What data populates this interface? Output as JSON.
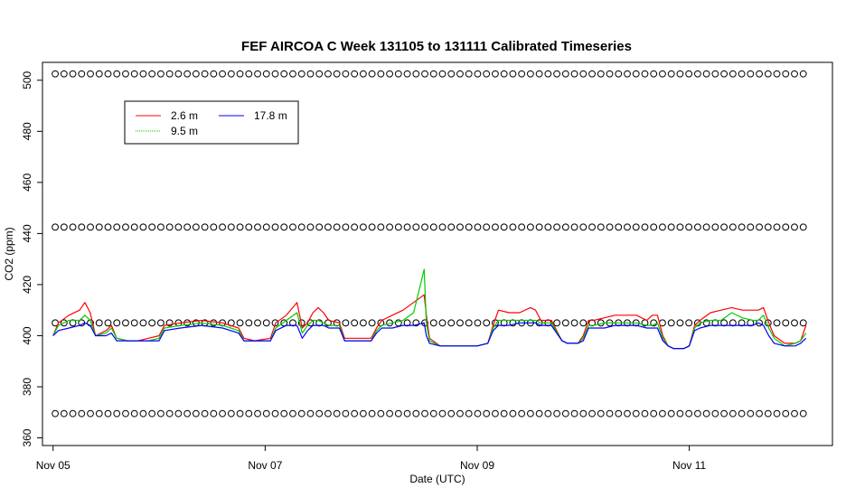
{
  "chart_data": {
    "type": "line",
    "title": "FEF AIRCOA C  Week 131105 to 131111  Calibrated Timeseries",
    "xlabel": "Date (UTC)",
    "ylabel": "CO2 (ppm)",
    "xlim": [
      -0.1,
      7.35
    ],
    "ylim": [
      357,
      507
    ],
    "x_units": "days since Nov 05 00:00 UTC",
    "x_ticks": [
      {
        "value": 0,
        "label": "Nov 05"
      },
      {
        "value": 2,
        "label": "Nov 07"
      },
      {
        "value": 4,
        "label": "Nov 09"
      },
      {
        "value": 6,
        "label": "Nov 11"
      }
    ],
    "y_ticks": [
      360,
      380,
      400,
      420,
      440,
      460,
      480,
      500
    ],
    "grid": false,
    "legend_placement": "top-left",
    "legend": [
      {
        "name": "2.6 m",
        "color": "#ff0000"
      },
      {
        "name": "9.5 m",
        "color": "#00cc00"
      },
      {
        "name": "17.8 m",
        "color": "#0000ff"
      }
    ],
    "series": [
      {
        "name": "2.6 m",
        "color": "#ff0000",
        "points": [
          [
            0,
            400
          ],
          [
            0.05,
            405
          ],
          [
            0.15,
            408
          ],
          [
            0.25,
            410
          ],
          [
            0.3,
            413
          ],
          [
            0.35,
            409
          ],
          [
            0.4,
            400
          ],
          [
            0.5,
            402
          ],
          [
            0.55,
            404
          ],
          [
            0.6,
            399
          ],
          [
            0.7,
            398
          ],
          [
            0.8,
            398
          ],
          [
            0.9,
            399
          ],
          [
            1.0,
            400
          ],
          [
            1.05,
            404
          ],
          [
            1.2,
            405
          ],
          [
            1.4,
            406
          ],
          [
            1.6,
            405
          ],
          [
            1.75,
            403
          ],
          [
            1.8,
            399
          ],
          [
            1.9,
            398
          ],
          [
            2.05,
            399
          ],
          [
            2.1,
            405
          ],
          [
            2.2,
            408
          ],
          [
            2.3,
            413
          ],
          [
            2.35,
            403
          ],
          [
            2.4,
            405
          ],
          [
            2.45,
            409
          ],
          [
            2.5,
            411
          ],
          [
            2.55,
            409
          ],
          [
            2.6,
            406
          ],
          [
            2.7,
            405
          ],
          [
            2.75,
            399
          ],
          [
            2.85,
            399
          ],
          [
            2.95,
            399
          ],
          [
            3.0,
            399
          ],
          [
            3.05,
            403
          ],
          [
            3.1,
            406
          ],
          [
            3.2,
            408
          ],
          [
            3.3,
            410
          ],
          [
            3.4,
            413
          ],
          [
            3.5,
            416
          ],
          [
            3.52,
            408
          ],
          [
            3.55,
            399
          ],
          [
            3.65,
            396
          ],
          [
            3.75,
            396
          ],
          [
            3.85,
            396
          ],
          [
            4.0,
            396
          ],
          [
            4.1,
            397
          ],
          [
            4.15,
            404
          ],
          [
            4.2,
            410
          ],
          [
            4.3,
            409
          ],
          [
            4.4,
            409
          ],
          [
            4.5,
            411
          ],
          [
            4.55,
            410
          ],
          [
            4.6,
            406
          ],
          [
            4.7,
            406
          ],
          [
            4.8,
            398
          ],
          [
            4.85,
            397
          ],
          [
            4.95,
            397
          ],
          [
            5.0,
            400
          ],
          [
            5.05,
            406
          ],
          [
            5.1,
            406
          ],
          [
            5.2,
            407
          ],
          [
            5.3,
            408
          ],
          [
            5.4,
            408
          ],
          [
            5.5,
            408
          ],
          [
            5.6,
            406
          ],
          [
            5.65,
            408
          ],
          [
            5.7,
            408
          ],
          [
            5.75,
            400
          ],
          [
            5.8,
            396
          ],
          [
            5.85,
            395
          ],
          [
            5.95,
            395
          ],
          [
            6.0,
            396
          ],
          [
            6.05,
            404
          ],
          [
            6.1,
            406
          ],
          [
            6.2,
            409
          ],
          [
            6.3,
            410
          ],
          [
            6.4,
            411
          ],
          [
            6.5,
            410
          ],
          [
            6.6,
            410
          ],
          [
            6.65,
            410
          ],
          [
            6.7,
            411
          ],
          [
            6.75,
            405
          ],
          [
            6.8,
            400
          ],
          [
            6.9,
            397
          ],
          [
            7.0,
            397
          ],
          [
            7.05,
            398
          ],
          [
            7.1,
            404
          ]
        ]
      },
      {
        "name": "9.5 m",
        "color": "#00cc00",
        "points": [
          [
            0,
            400
          ],
          [
            0.05,
            404
          ],
          [
            0.15,
            406
          ],
          [
            0.25,
            406
          ],
          [
            0.3,
            408
          ],
          [
            0.35,
            406
          ],
          [
            0.4,
            400
          ],
          [
            0.5,
            401
          ],
          [
            0.55,
            403
          ],
          [
            0.6,
            399
          ],
          [
            0.7,
            398
          ],
          [
            0.8,
            398
          ],
          [
            0.9,
            398
          ],
          [
            1.0,
            399
          ],
          [
            1.05,
            403
          ],
          [
            1.2,
            404
          ],
          [
            1.4,
            405
          ],
          [
            1.6,
            404
          ],
          [
            1.75,
            402
          ],
          [
            1.8,
            398
          ],
          [
            1.9,
            398
          ],
          [
            2.05,
            398
          ],
          [
            2.1,
            403
          ],
          [
            2.2,
            406
          ],
          [
            2.3,
            409
          ],
          [
            2.35,
            401
          ],
          [
            2.4,
            404
          ],
          [
            2.45,
            406
          ],
          [
            2.5,
            406
          ],
          [
            2.55,
            405
          ],
          [
            2.6,
            404
          ],
          [
            2.7,
            404
          ],
          [
            2.75,
            398
          ],
          [
            2.85,
            398
          ],
          [
            2.95,
            398
          ],
          [
            3.0,
            398
          ],
          [
            3.05,
            402
          ],
          [
            3.1,
            404
          ],
          [
            3.2,
            405
          ],
          [
            3.3,
            406
          ],
          [
            3.4,
            409
          ],
          [
            3.5,
            426
          ],
          [
            3.52,
            405
          ],
          [
            3.55,
            398
          ],
          [
            3.65,
            396
          ],
          [
            3.75,
            396
          ],
          [
            3.85,
            396
          ],
          [
            4.0,
            396
          ],
          [
            4.1,
            397
          ],
          [
            4.15,
            403
          ],
          [
            4.2,
            406
          ],
          [
            4.3,
            406
          ],
          [
            4.4,
            406
          ],
          [
            4.5,
            406
          ],
          [
            4.55,
            406
          ],
          [
            4.6,
            405
          ],
          [
            4.7,
            405
          ],
          [
            4.8,
            398
          ],
          [
            4.85,
            397
          ],
          [
            4.95,
            397
          ],
          [
            5.0,
            399
          ],
          [
            5.05,
            404
          ],
          [
            5.1,
            404
          ],
          [
            5.2,
            405
          ],
          [
            5.3,
            405
          ],
          [
            5.4,
            405
          ],
          [
            5.5,
            405
          ],
          [
            5.6,
            404
          ],
          [
            5.65,
            404
          ],
          [
            5.7,
            405
          ],
          [
            5.75,
            399
          ],
          [
            5.8,
            396
          ],
          [
            5.85,
            395
          ],
          [
            5.95,
            395
          ],
          [
            6.0,
            396
          ],
          [
            6.05,
            403
          ],
          [
            6.1,
            405
          ],
          [
            6.2,
            406
          ],
          [
            6.3,
            406
          ],
          [
            6.4,
            409
          ],
          [
            6.5,
            407
          ],
          [
            6.6,
            406
          ],
          [
            6.65,
            406
          ],
          [
            6.7,
            408
          ],
          [
            6.75,
            403
          ],
          [
            6.8,
            399
          ],
          [
            6.9,
            396
          ],
          [
            7.0,
            397
          ],
          [
            7.05,
            398
          ],
          [
            7.1,
            401
          ]
        ]
      },
      {
        "name": "17.8 m",
        "color": "#0000ff",
        "points": [
          [
            0,
            400
          ],
          [
            0.05,
            402
          ],
          [
            0.15,
            403
          ],
          [
            0.25,
            404
          ],
          [
            0.3,
            405
          ],
          [
            0.35,
            404
          ],
          [
            0.4,
            400
          ],
          [
            0.5,
            400
          ],
          [
            0.55,
            401
          ],
          [
            0.6,
            398
          ],
          [
            0.7,
            398
          ],
          [
            0.8,
            398
          ],
          [
            0.9,
            398
          ],
          [
            1.0,
            398
          ],
          [
            1.05,
            402
          ],
          [
            1.2,
            403
          ],
          [
            1.4,
            404
          ],
          [
            1.6,
            403
          ],
          [
            1.75,
            401
          ],
          [
            1.8,
            398
          ],
          [
            1.9,
            398
          ],
          [
            2.05,
            398
          ],
          [
            2.1,
            402
          ],
          [
            2.2,
            404
          ],
          [
            2.3,
            404
          ],
          [
            2.35,
            399
          ],
          [
            2.4,
            402
          ],
          [
            2.45,
            404
          ],
          [
            2.5,
            404
          ],
          [
            2.55,
            404
          ],
          [
            2.6,
            403
          ],
          [
            2.7,
            403
          ],
          [
            2.75,
            398
          ],
          [
            2.85,
            398
          ],
          [
            2.95,
            398
          ],
          [
            3.0,
            398
          ],
          [
            3.05,
            401
          ],
          [
            3.1,
            403
          ],
          [
            3.2,
            403
          ],
          [
            3.3,
            404
          ],
          [
            3.4,
            404
          ],
          [
            3.5,
            405
          ],
          [
            3.52,
            400
          ],
          [
            3.55,
            397
          ],
          [
            3.65,
            396
          ],
          [
            3.75,
            396
          ],
          [
            3.85,
            396
          ],
          [
            4.0,
            396
          ],
          [
            4.1,
            397
          ],
          [
            4.15,
            402
          ],
          [
            4.2,
            404
          ],
          [
            4.3,
            404
          ],
          [
            4.4,
            405
          ],
          [
            4.5,
            405
          ],
          [
            4.55,
            405
          ],
          [
            4.6,
            404
          ],
          [
            4.7,
            404
          ],
          [
            4.8,
            398
          ],
          [
            4.85,
            397
          ],
          [
            4.95,
            397
          ],
          [
            5.0,
            398
          ],
          [
            5.05,
            403
          ],
          [
            5.1,
            403
          ],
          [
            5.2,
            403
          ],
          [
            5.3,
            404
          ],
          [
            5.4,
            404
          ],
          [
            5.5,
            404
          ],
          [
            5.6,
            403
          ],
          [
            5.65,
            403
          ],
          [
            5.7,
            403
          ],
          [
            5.75,
            398
          ],
          [
            5.8,
            396
          ],
          [
            5.85,
            395
          ],
          [
            5.95,
            395
          ],
          [
            6.0,
            396
          ],
          [
            6.05,
            402
          ],
          [
            6.1,
            403
          ],
          [
            6.2,
            404
          ],
          [
            6.3,
            404
          ],
          [
            6.4,
            404
          ],
          [
            6.5,
            404
          ],
          [
            6.6,
            404
          ],
          [
            6.65,
            405
          ],
          [
            6.7,
            404
          ],
          [
            6.75,
            400
          ],
          [
            6.8,
            397
          ],
          [
            6.9,
            396
          ],
          [
            7.0,
            396
          ],
          [
            7.05,
            397
          ],
          [
            7.1,
            399
          ]
        ]
      },
      {
        "name": "calibration standards",
        "color": "#000000",
        "marker": "open-circle",
        "levels": [
          369.5,
          405,
          442.5,
          502.5
        ],
        "x_range": [
          0.02,
          7.1
        ],
        "x_step": 0.083
      }
    ]
  }
}
